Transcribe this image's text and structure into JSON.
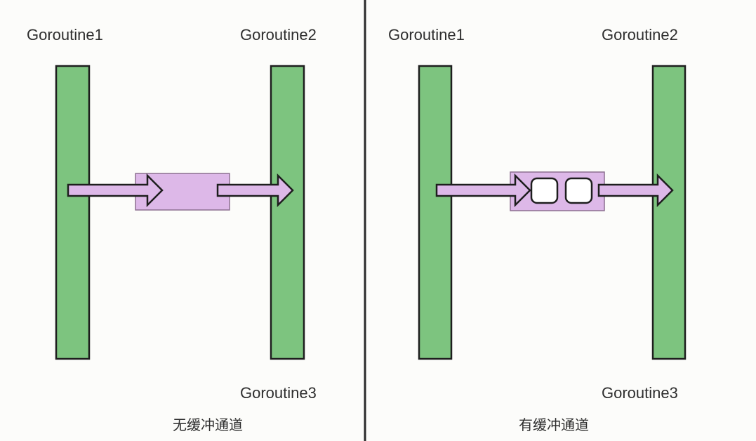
{
  "unbuffered": {
    "goroutine1_label": "Goroutine1",
    "goroutine2_label": "Goroutine2",
    "goroutine3_label": "Goroutine3",
    "caption": "无缓冲通道"
  },
  "buffered": {
    "goroutine1_label": "Goroutine1",
    "goroutine2_label": "Goroutine2",
    "goroutine3_label": "Goroutine3",
    "caption": "有缓冲通道",
    "buffer_slots": 2
  },
  "colors": {
    "goroutine_bar": "#7dc47f",
    "channel": "#ddb8e8",
    "outline": "#1e1e1e"
  }
}
